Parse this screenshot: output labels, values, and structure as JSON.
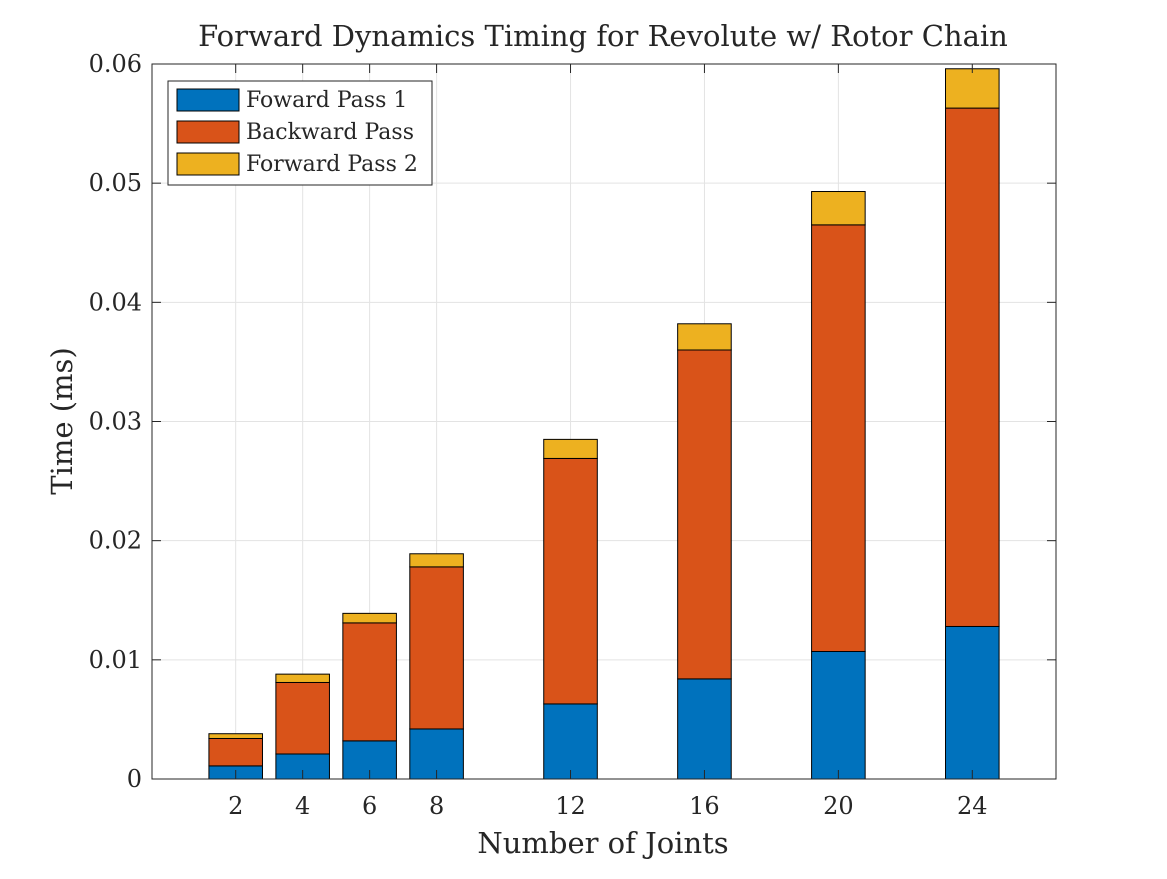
{
  "chart_data": {
    "type": "bar",
    "stacked": true,
    "title": "Forward Dynamics Timing for Revolute w/ Rotor Chain",
    "xlabel": "Number of Joints",
    "ylabel": "Time (ms)",
    "x": [
      2,
      4,
      6,
      8,
      12,
      16,
      20,
      24
    ],
    "x_tick_labels": [
      "2",
      "4",
      "6",
      "8",
      "12",
      "16",
      "20",
      "24"
    ],
    "xlim": [
      -0.5,
      26.5
    ],
    "ylim": [
      0,
      0.06
    ],
    "y_ticks": [
      0,
      0.01,
      0.02,
      0.03,
      0.04,
      0.05,
      0.06
    ],
    "y_tick_labels": [
      "0",
      "0.01",
      "0.02",
      "0.03",
      "0.04",
      "0.05",
      "0.06"
    ],
    "bar_width": 1.6,
    "grid": true,
    "legend_position": "top-left",
    "series": [
      {
        "name": "Foward Pass 1",
        "color": "#0072BD",
        "values": [
          0.0011,
          0.0021,
          0.0032,
          0.0042,
          0.0063,
          0.0084,
          0.0107,
          0.0128
        ]
      },
      {
        "name": "Backward Pass",
        "color": "#D95319",
        "values": [
          0.0023,
          0.006,
          0.0099,
          0.0136,
          0.0206,
          0.0276,
          0.0358,
          0.0435
        ]
      },
      {
        "name": "Forward Pass 2",
        "color": "#EDB120",
        "values": [
          0.0004,
          0.0007,
          0.0008,
          0.0011,
          0.0016,
          0.0022,
          0.0028,
          0.0033
        ]
      }
    ]
  }
}
